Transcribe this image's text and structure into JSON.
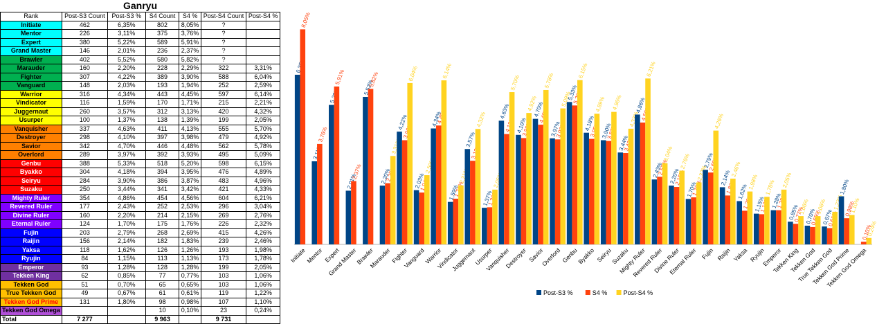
{
  "title": "Ganryu",
  "table": {
    "headers": [
      "Rank",
      "Post-S3 Count",
      "Post-S3 %",
      "S4 Count",
      "S4 %",
      "Post-S4 Count",
      "Post-S4 %"
    ],
    "rows": [
      {
        "rank": "Initiate",
        "bg": "#00FFFF",
        "fg": "#000000",
        "c3": "462",
        "p3": "6,35%",
        "c4": "802",
        "p4": "8,05%",
        "c5": "?",
        "p5": ""
      },
      {
        "rank": "Mentor",
        "bg": "#00FFFF",
        "fg": "#000000",
        "c3": "226",
        "p3": "3,11%",
        "c4": "375",
        "p4": "3,76%",
        "c5": "?",
        "p5": ""
      },
      {
        "rank": "Expert",
        "bg": "#00FFFF",
        "fg": "#000000",
        "c3": "380",
        "p3": "5,22%",
        "c4": "589",
        "p4": "5,91%",
        "c5": "?",
        "p5": ""
      },
      {
        "rank": "Grand Master",
        "bg": "#00FFFF",
        "fg": "#000000",
        "c3": "146",
        "p3": "2,01%",
        "c4": "236",
        "p4": "2,37%",
        "c5": "?",
        "p5": ""
      },
      {
        "rank": "Brawler",
        "bg": "#00B050",
        "fg": "#000000",
        "c3": "402",
        "p3": "5,52%",
        "c4": "580",
        "p4": "5,82%",
        "c5": "?",
        "p5": ""
      },
      {
        "rank": "Marauder",
        "bg": "#00B050",
        "fg": "#000000",
        "c3": "160",
        "p3": "2,20%",
        "c4": "228",
        "p4": "2,29%",
        "c5": "322",
        "p5": "3,31%"
      },
      {
        "rank": "Fighter",
        "bg": "#00B050",
        "fg": "#000000",
        "c3": "307",
        "p3": "4,22%",
        "c4": "389",
        "p4": "3,90%",
        "c5": "588",
        "p5": "6,04%"
      },
      {
        "rank": "Vanguard",
        "bg": "#00B050",
        "fg": "#000000",
        "c3": "148",
        "p3": "2,03%",
        "c4": "193",
        "p4": "1,94%",
        "c5": "252",
        "p5": "2,59%"
      },
      {
        "rank": "Warrior",
        "bg": "#FFFF00",
        "fg": "#000000",
        "c3": "316",
        "p3": "4,34%",
        "c4": "443",
        "p4": "4,45%",
        "c5": "597",
        "p5": "6,14%"
      },
      {
        "rank": "Vindicator",
        "bg": "#FFFF00",
        "fg": "#000000",
        "c3": "116",
        "p3": "1,59%",
        "c4": "170",
        "p4": "1,71%",
        "c5": "215",
        "p5": "2,21%"
      },
      {
        "rank": "Juggernaut",
        "bg": "#FFFF00",
        "fg": "#000000",
        "c3": "260",
        "p3": "3,57%",
        "c4": "312",
        "p4": "3,13%",
        "c5": "420",
        "p5": "4,32%"
      },
      {
        "rank": "Usurper",
        "bg": "#FFFF00",
        "fg": "#000000",
        "c3": "100",
        "p3": "1,37%",
        "c4": "138",
        "p4": "1,39%",
        "c5": "199",
        "p5": "2,05%"
      },
      {
        "rank": "Vanquisher",
        "bg": "#FF8000",
        "fg": "#000000",
        "c3": "337",
        "p3": "4,63%",
        "c4": "411",
        "p4": "4,13%",
        "c5": "555",
        "p5": "5,70%"
      },
      {
        "rank": "Destroyer",
        "bg": "#FF8000",
        "fg": "#000000",
        "c3": "298",
        "p3": "4,10%",
        "c4": "397",
        "p4": "3,98%",
        "c5": "479",
        "p5": "4,92%"
      },
      {
        "rank": "Savior",
        "bg": "#FF8000",
        "fg": "#000000",
        "c3": "342",
        "p3": "4,70%",
        "c4": "446",
        "p4": "4,48%",
        "c5": "562",
        "p5": "5,78%"
      },
      {
        "rank": "Overlord",
        "bg": "#FF8000",
        "fg": "#000000",
        "c3": "289",
        "p3": "3,97%",
        "c4": "392",
        "p4": "3,93%",
        "c5": "495",
        "p5": "5,09%"
      },
      {
        "rank": "Genbu",
        "bg": "#FF0000",
        "fg": "#FFFFFF",
        "c3": "388",
        "p3": "5,33%",
        "c4": "518",
        "p4": "5,20%",
        "c5": "598",
        "p5": "6,15%"
      },
      {
        "rank": "Byakko",
        "bg": "#FF0000",
        "fg": "#FFFFFF",
        "c3": "304",
        "p3": "4,18%",
        "c4": "394",
        "p4": "3,95%",
        "c5": "476",
        "p5": "4,89%"
      },
      {
        "rank": "Seiryu",
        "bg": "#FF0000",
        "fg": "#FFFFFF",
        "c3": "284",
        "p3": "3,90%",
        "c4": "386",
        "p4": "3,87%",
        "c5": "483",
        "p5": "4,96%"
      },
      {
        "rank": "Suzaku",
        "bg": "#FF0000",
        "fg": "#FFFFFF",
        "c3": "250",
        "p3": "3,44%",
        "c4": "341",
        "p4": "3,42%",
        "c5": "421",
        "p5": "4,33%"
      },
      {
        "rank": "Mighty Ruler",
        "bg": "#8000FF",
        "fg": "#FFFFFF",
        "c3": "354",
        "p3": "4,86%",
        "c4": "454",
        "p4": "4,56%",
        "c5": "604",
        "p5": "6,21%"
      },
      {
        "rank": "Revered Ruler",
        "bg": "#8000FF",
        "fg": "#FFFFFF",
        "c3": "177",
        "p3": "2,43%",
        "c4": "252",
        "p4": "2,53%",
        "c5": "296",
        "p5": "3,04%"
      },
      {
        "rank": "Divine Ruler",
        "bg": "#8000FF",
        "fg": "#FFFFFF",
        "c3": "160",
        "p3": "2,20%",
        "c4": "214",
        "p4": "2,15%",
        "c5": "269",
        "p5": "2,76%"
      },
      {
        "rank": "Eternal Ruler",
        "bg": "#8000FF",
        "fg": "#FFFFFF",
        "c3": "124",
        "p3": "1,70%",
        "c4": "175",
        "p4": "1,76%",
        "c5": "226",
        "p5": "2,32%"
      },
      {
        "rank": "Fujin",
        "bg": "#0000FF",
        "fg": "#FFFFFF",
        "c3": "203",
        "p3": "2,79%",
        "c4": "268",
        "p4": "2,69%",
        "c5": "415",
        "p5": "4,26%"
      },
      {
        "rank": "Raijin",
        "bg": "#0000FF",
        "fg": "#FFFFFF",
        "c3": "156",
        "p3": "2,14%",
        "c4": "182",
        "p4": "1,83%",
        "c5": "239",
        "p5": "2,46%"
      },
      {
        "rank": "Yaksa",
        "bg": "#0000FF",
        "fg": "#FFFFFF",
        "c3": "118",
        "p3": "1,62%",
        "c4": "126",
        "p4": "1,26%",
        "c5": "193",
        "p5": "1,98%"
      },
      {
        "rank": "Ryujin",
        "bg": "#0000FF",
        "fg": "#FFFFFF",
        "c3": "84",
        "p3": "1,15%",
        "c4": "113",
        "p4": "1,13%",
        "c5": "173",
        "p5": "1,78%"
      },
      {
        "rank": "Emperor",
        "bg": "#7030A0",
        "fg": "#FFFFFF",
        "c3": "93",
        "p3": "1,28%",
        "c4": "128",
        "p4": "1,28%",
        "c5": "199",
        "p5": "2,05%"
      },
      {
        "rank": "Tekken King",
        "bg": "#7030A0",
        "fg": "#FFFFFF",
        "c3": "62",
        "p3": "0,85%",
        "c4": "77",
        "p4": "0,77%",
        "c5": "103",
        "p5": "1,06%"
      },
      {
        "rank": "Tekken God",
        "bg": "#FFC000",
        "fg": "#000000",
        "c3": "51",
        "p3": "0,70%",
        "c4": "65",
        "p4": "0,65%",
        "c5": "103",
        "p5": "1,06%"
      },
      {
        "rank": "True Tekken God",
        "bg": "#FFC000",
        "fg": "#000000",
        "c3": "49",
        "p3": "0,67%",
        "c4": "61",
        "p4": "0,61%",
        "c5": "119",
        "p5": "1,22%"
      },
      {
        "rank": "Tekken God Prime",
        "bg": "#FFC000",
        "fg": "#FF0000",
        "c3": "131",
        "p3": "1,80%",
        "c4": "98",
        "p4": "0,98%",
        "c5": "107",
        "p5": "1,10%"
      },
      {
        "rank": "Tekken God Omega",
        "bg": "#B04FD8",
        "fg": "#000000",
        "c3": "",
        "p3": "",
        "c4": "10",
        "p4": "0,10%",
        "c5": "23",
        "p5": "0,24%"
      }
    ],
    "total": {
      "label": "Total",
      "c3": "7 277",
      "p3": "",
      "c4": "9 963",
      "p4": "",
      "c5": "9 731",
      "p5": ""
    }
  },
  "chart_data": {
    "type": "bar",
    "categories": [
      "Initiate",
      "Mentor",
      "Expert",
      "Grand Master",
      "Brawler",
      "Marauder",
      "Fighter",
      "Vanguard",
      "Warrior",
      "Vindicator",
      "Juggernaut",
      "Usurper",
      "Vanquisher",
      "Destroyer",
      "Savior",
      "Overlord",
      "Genbu",
      "Byakko",
      "Seiryu",
      "Suzaku",
      "Mighty Ruler",
      "Revered Ruler",
      "Divine Ruler",
      "Eternal Ruler",
      "Fujin",
      "Raijin",
      "Yaksa",
      "Ryujin",
      "Emperor",
      "Tekken King",
      "Tekken God",
      "True Tekken God",
      "Tekken God Prime",
      "Tekken God Omega"
    ],
    "series": [
      {
        "name": "Post-S3 %",
        "color": "#004586",
        "values": [
          6.35,
          3.11,
          5.22,
          2.01,
          5.52,
          2.2,
          4.22,
          2.03,
          4.34,
          1.59,
          3.57,
          1.37,
          4.63,
          4.1,
          4.7,
          3.97,
          5.33,
          4.18,
          3.9,
          3.44,
          4.86,
          2.43,
          2.2,
          1.7,
          2.79,
          2.14,
          1.62,
          1.15,
          1.28,
          0.85,
          0.7,
          0.67,
          1.8,
          null
        ],
        "labels": [
          "6,35%",
          "3,11%",
          "5,22%",
          "2,01%",
          "5,52%",
          "2,20%",
          "4,22%",
          "2,03%",
          "4,34%",
          "1,59%",
          "3,57%",
          "1,37%",
          "4,63%",
          "4,10%",
          "4,70%",
          "3,97%",
          "5,33%",
          "4,18%",
          "3,90%",
          "3,44%",
          "4,86%",
          "2,43%",
          "2,20%",
          "1,70%",
          "2,79%",
          "2,14%",
          "1,62%",
          "1,15%",
          "1,28%",
          "0,85%",
          "0,70%",
          "0,67%",
          "1,80%",
          ""
        ]
      },
      {
        "name": "S4 %",
        "color": "#FF420E",
        "values": [
          8.05,
          3.76,
          5.91,
          2.37,
          5.82,
          2.29,
          3.9,
          1.94,
          4.45,
          1.71,
          3.13,
          1.39,
          4.13,
          3.98,
          4.48,
          3.93,
          5.2,
          3.95,
          3.87,
          3.42,
          4.56,
          2.53,
          2.15,
          1.76,
          2.69,
          1.83,
          1.26,
          1.13,
          1.28,
          0.77,
          0.65,
          0.61,
          0.98,
          0.1
        ],
        "labels": [
          "8,05%",
          "3,76%",
          "5,91%",
          "2,37%",
          "5,82%",
          "2,29%",
          "3,90%",
          "1,94%",
          "4,45%",
          "1,71%",
          "3,13%",
          "1,39%",
          "4,13%",
          "3,98%",
          "4,48%",
          "3,93%",
          "5,20%",
          "3,95%",
          "3,87%",
          "3,42%",
          "4,56%",
          "2,53%",
          "2,15%",
          "1,76%",
          "2,69%",
          "1,83%",
          "1,26%",
          "1,13%",
          "1,28%",
          "0,77%",
          "0,65%",
          "0,61%",
          "0,98%",
          "0,10%"
        ]
      },
      {
        "name": "Post-S4 %",
        "color": "#FFD320",
        "values": [
          null,
          null,
          null,
          null,
          null,
          3.31,
          6.04,
          2.59,
          6.14,
          2.21,
          4.32,
          2.05,
          5.7,
          4.92,
          5.78,
          5.09,
          6.15,
          4.89,
          4.96,
          4.33,
          6.21,
          3.04,
          2.76,
          2.32,
          4.26,
          2.46,
          1.98,
          1.78,
          2.05,
          1.06,
          1.06,
          1.22,
          1.1,
          0.24
        ],
        "labels": [
          "",
          "",
          "",
          "",
          "",
          "3,31%",
          "6,04%",
          "2,59%",
          "6,14%",
          "2,21%",
          "4,32%",
          "2,05%",
          "5,70%",
          "4,92%",
          "5,78%",
          "5,09%",
          "6,15%",
          "4,89%",
          "4,96%",
          "4,33%",
          "6,21%",
          "3,04%",
          "2,76%",
          "2,32%",
          "4,26%",
          "2,46%",
          "1,98%",
          "1,78%",
          "2,05%",
          "1,06%",
          "1,06%",
          "1,22%",
          "1,10%",
          "0,24%"
        ]
      }
    ],
    "ylim": [
      0,
      8.5
    ],
    "legend": "bottom"
  }
}
